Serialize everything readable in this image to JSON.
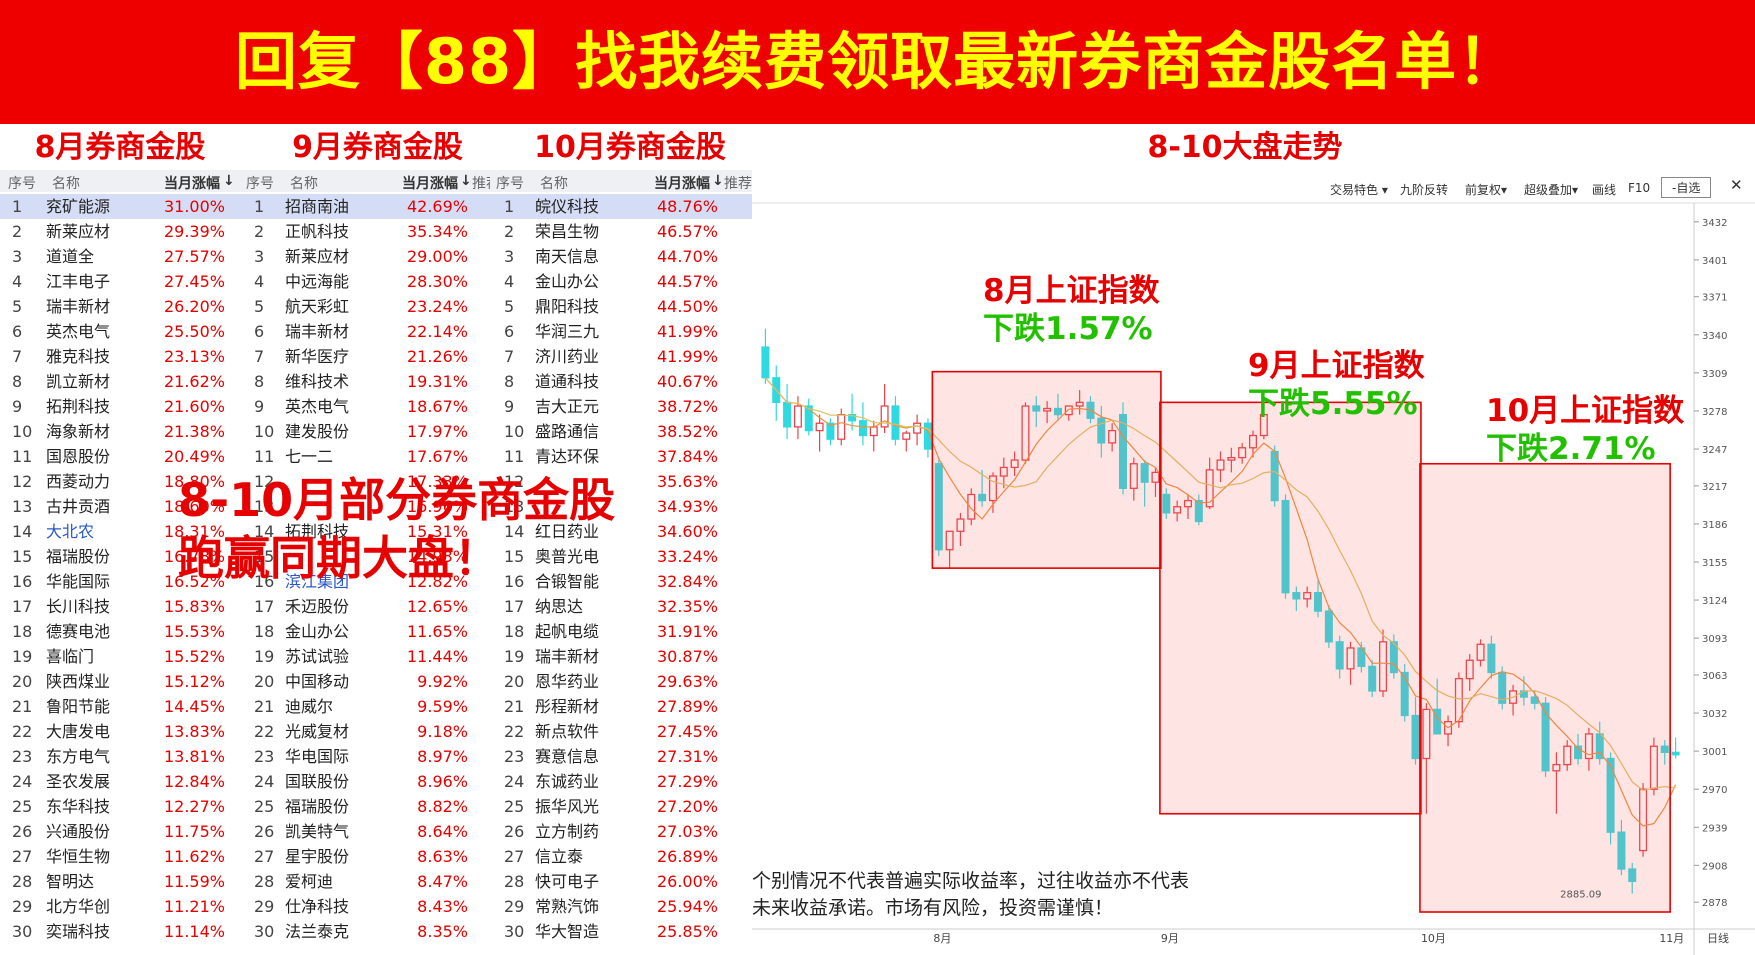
{
  "banner": {
    "text": "回复【88】找我续费领取最新券商金股名单！"
  },
  "sections": {
    "aug_title": "8月券商金股",
    "sep_title": "9月券商金股",
    "oct_title": "10月券商金股",
    "trend_title": "8-10大盘走势"
  },
  "table_headers": {
    "idx": "序号",
    "name": "名称",
    "pct": "当月涨幅",
    "extra": "推荐"
  },
  "overlay": {
    "line1": "8-10月部分券商金股",
    "line2": "跑赢同期大盘！"
  },
  "aug_rows": [
    {
      "idx": "1",
      "name": "兖矿能源",
      "pct": "31.00%"
    },
    {
      "idx": "2",
      "name": "新莱应材",
      "pct": "29.39%"
    },
    {
      "idx": "3",
      "name": "道道全",
      "pct": "27.57%"
    },
    {
      "idx": "4",
      "name": "江丰电子",
      "pct": "27.45%"
    },
    {
      "idx": "5",
      "name": "瑞丰新材",
      "pct": "26.20%"
    },
    {
      "idx": "6",
      "name": "英杰电气",
      "pct": "25.50%"
    },
    {
      "idx": "7",
      "name": "雅克科技",
      "pct": "23.13%"
    },
    {
      "idx": "8",
      "name": "凯立新材",
      "pct": "21.62%"
    },
    {
      "idx": "9",
      "name": "拓荆科技",
      "pct": "21.60%"
    },
    {
      "idx": "10",
      "name": "海象新材",
      "pct": "21.38%"
    },
    {
      "idx": "11",
      "name": "国恩股份",
      "pct": "20.49%"
    },
    {
      "idx": "12",
      "name": "西菱动力",
      "pct": "18.80%"
    },
    {
      "idx": "13",
      "name": "古井贡酒",
      "pct": "18.60%"
    },
    {
      "idx": "14",
      "name": "大北农",
      "pct": "18.31%"
    },
    {
      "idx": "15",
      "name": "福瑞股份",
      "pct": "16.78%"
    },
    {
      "idx": "16",
      "name": "华能国际",
      "pct": "16.52%"
    },
    {
      "idx": "17",
      "name": "长川科技",
      "pct": "15.83%"
    },
    {
      "idx": "18",
      "name": "德赛电池",
      "pct": "15.53%"
    },
    {
      "idx": "19",
      "name": "喜临门",
      "pct": "15.52%"
    },
    {
      "idx": "20",
      "name": "陕西煤业",
      "pct": "15.12%"
    },
    {
      "idx": "21",
      "name": "鲁阳节能",
      "pct": "14.45%"
    },
    {
      "idx": "22",
      "name": "大唐发电",
      "pct": "13.83%"
    },
    {
      "idx": "23",
      "name": "东方电气",
      "pct": "13.81%"
    },
    {
      "idx": "24",
      "name": "圣农发展",
      "pct": "12.84%"
    },
    {
      "idx": "25",
      "name": "东华科技",
      "pct": "12.27%"
    },
    {
      "idx": "26",
      "name": "兴通股份",
      "pct": "11.75%"
    },
    {
      "idx": "27",
      "name": "华恒生物",
      "pct": "11.62%"
    },
    {
      "idx": "28",
      "name": "智明达",
      "pct": "11.59%"
    },
    {
      "idx": "29",
      "name": "北方华创",
      "pct": "11.21%"
    },
    {
      "idx": "30",
      "name": "奕瑞科技",
      "pct": "11.14%"
    }
  ],
  "sep_rows": [
    {
      "idx": "1",
      "name": "招商南油",
      "pct": "42.69%"
    },
    {
      "idx": "2",
      "name": "正帆科技",
      "pct": "35.34%"
    },
    {
      "idx": "3",
      "name": "新莱应材",
      "pct": "29.00%"
    },
    {
      "idx": "4",
      "name": "中远海能",
      "pct": "28.30%"
    },
    {
      "idx": "5",
      "name": "航天彩虹",
      "pct": "23.24%"
    },
    {
      "idx": "6",
      "name": "瑞丰新材",
      "pct": "22.14%"
    },
    {
      "idx": "7",
      "name": "新华医疗",
      "pct": "21.26%"
    },
    {
      "idx": "8",
      "name": "维科技术",
      "pct": "19.31%"
    },
    {
      "idx": "9",
      "name": "英杰电气",
      "pct": "18.67%"
    },
    {
      "idx": "10",
      "name": "建发股份",
      "pct": "17.97%"
    },
    {
      "idx": "11",
      "name": "七一二",
      "pct": "17.67%"
    },
    {
      "idx": "12",
      "name": "",
      "pct": "17.33%"
    },
    {
      "idx": "13",
      "name": "",
      "pct": "16.96%"
    },
    {
      "idx": "14",
      "name": "拓荆科技",
      "pct": "15.31%"
    },
    {
      "idx": "15",
      "name": "",
      "pct": "14.93%"
    },
    {
      "idx": "16",
      "name": "滨江集团",
      "pct": "12.82%"
    },
    {
      "idx": "17",
      "name": "禾迈股份",
      "pct": "12.65%"
    },
    {
      "idx": "18",
      "name": "金山办公",
      "pct": "11.65%"
    },
    {
      "idx": "19",
      "name": "苏试试验",
      "pct": "11.44%"
    },
    {
      "idx": "20",
      "name": "中国移动",
      "pct": "9.92%"
    },
    {
      "idx": "21",
      "name": "迪威尔",
      "pct": "9.59%"
    },
    {
      "idx": "22",
      "name": "光威复材",
      "pct": "9.18%"
    },
    {
      "idx": "23",
      "name": "华电国际",
      "pct": "8.97%"
    },
    {
      "idx": "24",
      "name": "国联股份",
      "pct": "8.96%"
    },
    {
      "idx": "25",
      "name": "福瑞股份",
      "pct": "8.82%"
    },
    {
      "idx": "26",
      "name": "凯美特气",
      "pct": "8.64%"
    },
    {
      "idx": "27",
      "name": "星宇股份",
      "pct": "8.63%"
    },
    {
      "idx": "28",
      "name": "爱柯迪",
      "pct": "8.47%"
    },
    {
      "idx": "29",
      "name": "仕净科技",
      "pct": "8.43%"
    },
    {
      "idx": "30",
      "name": "法兰泰克",
      "pct": "8.35%"
    }
  ],
  "oct_rows": [
    {
      "idx": "1",
      "name": "皖仪科技",
      "pct": "48.76%"
    },
    {
      "idx": "2",
      "name": "荣昌生物",
      "pct": "46.57%"
    },
    {
      "idx": "3",
      "name": "南天信息",
      "pct": "44.70%"
    },
    {
      "idx": "4",
      "name": "金山办公",
      "pct": "44.57%"
    },
    {
      "idx": "5",
      "name": "鼎阳科技",
      "pct": "44.50%"
    },
    {
      "idx": "6",
      "name": "华润三九",
      "pct": "41.99%"
    },
    {
      "idx": "7",
      "name": "济川药业",
      "pct": "41.99%"
    },
    {
      "idx": "8",
      "name": "道通科技",
      "pct": "40.67%"
    },
    {
      "idx": "9",
      "name": "吉大正元",
      "pct": "38.72%"
    },
    {
      "idx": "10",
      "name": "盛路通信",
      "pct": "38.52%"
    },
    {
      "idx": "11",
      "name": "青达环保",
      "pct": "37.84%"
    },
    {
      "idx": "12",
      "name": "",
      "pct": "35.63%"
    },
    {
      "idx": "13",
      "name": "",
      "pct": "34.93%"
    },
    {
      "idx": "14",
      "name": "红日药业",
      "pct": "34.60%"
    },
    {
      "idx": "15",
      "name": "奥普光电",
      "pct": "33.24%"
    },
    {
      "idx": "16",
      "name": "合锻智能",
      "pct": "32.84%"
    },
    {
      "idx": "17",
      "name": "纳思达",
      "pct": "32.35%"
    },
    {
      "idx": "18",
      "name": "起帆电缆",
      "pct": "31.91%"
    },
    {
      "idx": "19",
      "name": "瑞丰新材",
      "pct": "30.87%"
    },
    {
      "idx": "20",
      "name": "恩华药业",
      "pct": "29.63%"
    },
    {
      "idx": "21",
      "name": "彤程新材",
      "pct": "27.89%"
    },
    {
      "idx": "22",
      "name": "新点软件",
      "pct": "27.45%"
    },
    {
      "idx": "23",
      "name": "赛意信息",
      "pct": "27.31%"
    },
    {
      "idx": "24",
      "name": "东诚药业",
      "pct": "27.29%"
    },
    {
      "idx": "25",
      "name": "振华风光",
      "pct": "27.20%"
    },
    {
      "idx": "26",
      "name": "立方制药",
      "pct": "27.03%"
    },
    {
      "idx": "27",
      "name": "信立泰",
      "pct": "26.89%"
    },
    {
      "idx": "28",
      "name": "快可电子",
      "pct": "26.00%"
    },
    {
      "idx": "29",
      "name": "常熟汽饰",
      "pct": "25.94%"
    },
    {
      "idx": "30",
      "name": "华大智造",
      "pct": "25.85%"
    }
  ],
  "toolbar": {
    "items": [
      "交易特色 ▾",
      "九阶反转",
      "前复权▾",
      "超级叠加▾",
      "画线",
      "F10",
      "-自选"
    ],
    "close": "✕"
  },
  "annotations": {
    "aug_title": "8月上证指数",
    "aug_change": "下跌1.57%",
    "sep_title": "9月上证指数",
    "sep_change": "下跌5.55%",
    "oct_title": "10月上证指数",
    "oct_change": "下跌2.71%"
  },
  "disclaimer": {
    "line1": "个别情况不代表普遍实际收益率，过往收益亦不代表",
    "line2": "未来收益承诺。市场有风险，投资需谨慎！"
  },
  "chart_data": {
    "type": "candlestick",
    "y_ticks": [
      3432,
      3401,
      3371,
      3340,
      3309,
      3278,
      3247,
      3217,
      3186,
      3155,
      3124,
      3093,
      3063,
      3032,
      3001,
      2970,
      2939,
      2908,
      2878
    ],
    "x_labels": [
      "8月",
      "9月",
      "10月",
      "11月"
    ],
    "corner_label": "日线",
    "min_label": "2885.09",
    "ylim": [
      2870,
      3440
    ],
    "colors": {
      "up": "#e8434a",
      "down": "#2fd9e0",
      "ma5": "#f0903a",
      "ma10": "#e0c060"
    },
    "candles": [
      [
        3330,
        3345,
        3300,
        3305
      ],
      [
        3305,
        3315,
        3270,
        3285
      ],
      [
        3285,
        3300,
        3255,
        3265
      ],
      [
        3265,
        3290,
        3255,
        3282
      ],
      [
        3282,
        3288,
        3258,
        3262
      ],
      [
        3262,
        3275,
        3245,
        3268
      ],
      [
        3268,
        3272,
        3250,
        3255
      ],
      [
        3255,
        3280,
        3250,
        3275
      ],
      [
        3275,
        3292,
        3262,
        3270
      ],
      [
        3270,
        3285,
        3250,
        3258
      ],
      [
        3258,
        3270,
        3245,
        3265
      ],
      [
        3265,
        3300,
        3260,
        3282
      ],
      [
        3282,
        3290,
        3250,
        3255
      ],
      [
        3255,
        3262,
        3245,
        3260
      ],
      [
        3260,
        3275,
        3250,
        3268
      ],
      [
        3268,
        3272,
        3240,
        3247
      ],
      [
        3235,
        3240,
        3160,
        3165
      ],
      [
        3165,
        3175,
        3150,
        3180
      ],
      [
        3180,
        3195,
        3168,
        3190
      ],
      [
        3190,
        3215,
        3185,
        3210
      ],
      [
        3210,
        3230,
        3200,
        3205
      ],
      [
        3205,
        3228,
        3195,
        3225
      ],
      [
        3225,
        3240,
        3215,
        3232
      ],
      [
        3232,
        3245,
        3225,
        3238
      ],
      [
        3238,
        3285,
        3235,
        3282
      ],
      [
        3282,
        3290,
        3265,
        3278
      ],
      [
        3278,
        3286,
        3268,
        3280
      ],
      [
        3280,
        3292,
        3270,
        3275
      ],
      [
        3275,
        3280,
        3270,
        3282
      ],
      [
        3282,
        3295,
        3275,
        3285
      ],
      [
        3285,
        3290,
        3268,
        3272
      ],
      [
        3272,
        3282,
        3240,
        3252
      ],
      [
        3252,
        3268,
        3245,
        3262
      ],
      [
        3275,
        3285,
        3210,
        3215
      ],
      [
        3215,
        3240,
        3205,
        3235
      ],
      [
        3235,
        3238,
        3200,
        3220
      ],
      [
        3220,
        3232,
        3208,
        3228
      ],
      [
        3210,
        3215,
        3190,
        3195
      ],
      [
        3195,
        3205,
        3188,
        3200
      ],
      [
        3200,
        3210,
        3190,
        3205
      ],
      [
        3205,
        3210,
        3185,
        3188
      ],
      [
        3200,
        3240,
        3198,
        3230
      ],
      [
        3230,
        3245,
        3220,
        3238
      ],
      [
        3238,
        3248,
        3228,
        3240
      ],
      [
        3240,
        3252,
        3235,
        3248
      ],
      [
        3248,
        3262,
        3240,
        3258
      ],
      [
        3258,
        3282,
        3255,
        3275
      ],
      [
        3245,
        3250,
        3200,
        3205
      ],
      [
        3205,
        3210,
        3125,
        3130
      ],
      [
        3130,
        3135,
        3115,
        3125
      ],
      [
        3125,
        3135,
        3118,
        3130
      ],
      [
        3130,
        3140,
        3110,
        3115
      ],
      [
        3115,
        3120,
        3085,
        3090
      ],
      [
        3090,
        3095,
        3060,
        3068
      ],
      [
        3068,
        3090,
        3055,
        3085
      ],
      [
        3085,
        3090,
        3065,
        3070
      ],
      [
        3070,
        3075,
        3045,
        3050
      ],
      [
        3050,
        3100,
        3045,
        3090
      ],
      [
        3090,
        3096,
        3060,
        3065
      ],
      [
        3065,
        3072,
        3025,
        3030
      ],
      [
        3030,
        3045,
        2990,
        2995
      ],
      [
        2995,
        3040,
        2950,
        3035
      ],
      [
        3035,
        3060,
        3020,
        3015
      ],
      [
        3015,
        3030,
        3005,
        3025
      ],
      [
        3025,
        3065,
        3020,
        3060
      ],
      [
        3060,
        3080,
        3050,
        3075
      ],
      [
        3075,
        3092,
        3070,
        3088
      ],
      [
        3088,
        3095,
        3060,
        3065
      ],
      [
        3065,
        3070,
        3035,
        3040
      ],
      [
        3040,
        3055,
        3030,
        3050
      ],
      [
        3050,
        3062,
        3038,
        3045
      ],
      [
        3045,
        3050,
        3035,
        3040
      ],
      [
        3040,
        3045,
        2980,
        2985
      ],
      [
        2985,
        3000,
        2950,
        2990
      ],
      [
        2990,
        3010,
        2985,
        3005
      ],
      [
        3005,
        3015,
        2990,
        2995
      ],
      [
        2995,
        3020,
        2985,
        3015
      ],
      [
        3015,
        3025,
        2990,
        2995
      ],
      [
        2995,
        3000,
        2925,
        2935
      ],
      [
        2935,
        2945,
        2900,
        2905
      ],
      [
        2905,
        2910,
        2885,
        2895
      ],
      [
        2920,
        2975,
        2915,
        2970
      ],
      [
        2970,
        3012,
        2965,
        3005
      ],
      [
        3005,
        3010,
        2990,
        3000
      ],
      [
        3000,
        3012,
        2995,
        2998
      ]
    ]
  }
}
